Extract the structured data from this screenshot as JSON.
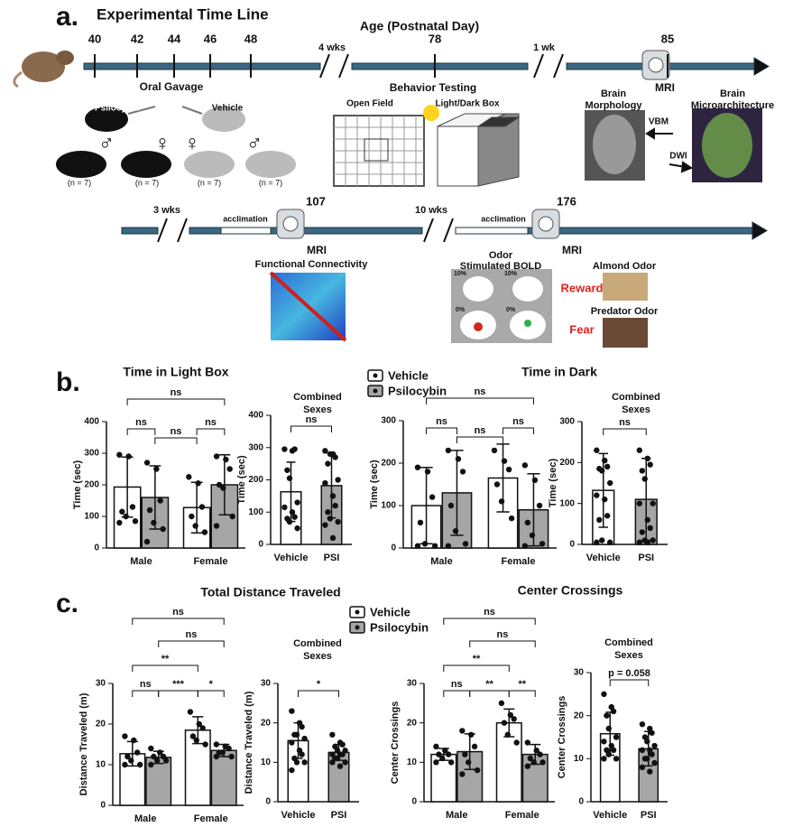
{
  "panels": [
    "a.",
    "b.",
    "c."
  ],
  "timeline": {
    "title": "Experimental Time Line",
    "axis_label": "Age (Postnatal Day)",
    "days": [
      "40",
      "42",
      "44",
      "46",
      "48",
      "78",
      "85",
      "107",
      "176"
    ],
    "gaps": [
      "4 wks",
      "1 wk",
      "3 wks",
      "10 wks"
    ],
    "gavage": {
      "label": "Oral Gavage",
      "drugs": [
        "Psilocybin",
        "Vehicle"
      ],
      "sexes": [
        "♂",
        "♀",
        "♀",
        "♂"
      ],
      "groups": [
        "(n = 7)",
        "(n = 7)",
        "(n = 7)",
        "(n = 7)"
      ]
    },
    "behavior": {
      "label": "Behavior Testing",
      "tests": [
        "Open Field",
        "Light/Dark Box"
      ]
    },
    "mri_labels": [
      "MRI",
      "MRI",
      "MRI"
    ],
    "morphology": {
      "label": [
        "Brain",
        "Morphology"
      ],
      "method": "VBM"
    },
    "microarchitecture": {
      "label": [
        "Brain",
        "Microarchitecture"
      ],
      "method": "DWI"
    },
    "acclimation": [
      "acclimation",
      "acclimation"
    ],
    "connectivity": "Functional Connectivity",
    "bold": {
      "label": [
        "Odor",
        "Stimulated BOLD"
      ],
      "scale": [
        "10%",
        "0%",
        "10%",
        "0%"
      ]
    },
    "odors": [
      {
        "name": "Almond Odor",
        "response": "Reward"
      },
      {
        "name": "Predator Odor",
        "response": "Fear"
      }
    ]
  },
  "chart_data": [
    {
      "type": "bar",
      "title": "Time in Light Box",
      "y_label": "Time (sec)",
      "categories": [
        "Male",
        "Female"
      ],
      "ylim": [
        0,
        400
      ],
      "yticks": [
        0,
        100,
        200,
        300,
        400
      ],
      "series": [
        {
          "name": "Vehicle",
          "color": "#ffffff",
          "values": [
            193,
            128
          ],
          "errors": [
            95,
            80
          ],
          "points": [
            [
              295,
              290,
              130,
              115,
              100,
              85,
              80
            ],
            [
              225,
              205,
              130,
              100,
              70,
              50
            ]
          ]
        },
        {
          "name": "Psilocybin",
          "color": "#a6a6a6",
          "values": [
            160,
            200
          ],
          "errors": [
            100,
            95
          ],
          "points": [
            [
              270,
              250,
              150,
              120,
              80,
              60,
              20
            ],
            [
              290,
              280,
              250,
              200,
              190,
              100,
              70
            ]
          ]
        }
      ],
      "annotations": [
        "ns",
        "ns",
        "ns",
        "ns"
      ]
    },
    {
      "type": "bar",
      "subtitle": [
        "Combined",
        "Sexes"
      ],
      "y_label": "Time (sec)",
      "categories": [
        "Vehicle",
        "PSI"
      ],
      "ylim": [
        0,
        400
      ],
      "yticks": [
        0,
        100,
        200,
        300,
        400
      ],
      "colors": [
        "#ffffff",
        "#a6a6a6"
      ],
      "values": [
        163,
        182
      ],
      "errors": [
        92,
        100
      ],
      "points": [
        [
          295,
          290,
          295,
          230,
          205,
          130,
          115,
          100,
          85,
          80,
          70,
          50
        ],
        [
          290,
          280,
          270,
          250,
          280,
          200,
          190,
          150,
          120,
          100,
          80,
          70,
          60,
          20
        ]
      ],
      "annotations": [
        "ns"
      ]
    },
    {
      "type": "bar",
      "title": "Time in Dark",
      "y_label": "Time (sec)",
      "categories": [
        "Male",
        "Female"
      ],
      "ylim": [
        0,
        300
      ],
      "yticks": [
        0,
        100,
        200,
        300
      ],
      "series": [
        {
          "color": "#ffffff",
          "values": [
            100,
            165
          ],
          "errors": [
            90,
            80
          ],
          "points": [
            [
              190,
              180,
              120,
              60,
              10,
              5,
              5
            ],
            [
              230,
              205,
              185,
              150,
              110,
              70
            ]
          ]
        },
        {
          "color": "#a6a6a6",
          "values": [
            130,
            90
          ],
          "errors": [
            100,
            85
          ],
          "points": [
            [
              230,
              210,
              180,
              100,
              40,
              10,
              5
            ],
            [
              195,
              160,
              100,
              60,
              30,
              10,
              5
            ]
          ]
        }
      ],
      "annotations": [
        "ns",
        "ns",
        "ns",
        "ns"
      ]
    },
    {
      "type": "bar",
      "subtitle": [
        "Combined",
        "Sexes"
      ],
      "y_label": "Time (sec)",
      "categories": [
        "Vehicle",
        "PSI"
      ],
      "ylim": [
        0,
        300
      ],
      "yticks": [
        0,
        100,
        200,
        300
      ],
      "colors": [
        "#ffffff",
        "#a6a6a6"
      ],
      "values": [
        132,
        110
      ],
      "errors": [
        90,
        100
      ],
      "points": [
        [
          230,
          205,
          190,
          185,
          180,
          150,
          120,
          110,
          70,
          60,
          10,
          5,
          5
        ],
        [
          230,
          210,
          195,
          180,
          160,
          100,
          100,
          60,
          40,
          30,
          10,
          10,
          5,
          5
        ]
      ],
      "annotations": [
        "ns"
      ]
    },
    {
      "type": "bar",
      "title": "Total Distance Traveled",
      "y_label": "Distance Traveled (m)",
      "categories": [
        "Male",
        "Female"
      ],
      "ylim": [
        0,
        30
      ],
      "yticks": [
        0,
        10,
        20,
        30
      ],
      "series": [
        {
          "name": "Vehicle",
          "color": "#ffffff",
          "values": [
            12.7,
            18.5
          ],
          "errors": [
            3,
            3.3
          ],
          "points": [
            [
              17,
              16,
              13,
              12,
              11,
              10,
              10
            ],
            [
              23,
              20,
              19,
              17,
              16,
              15
            ]
          ]
        },
        {
          "name": "Psilocybin",
          "color": "#a6a6a6",
          "values": [
            11.8,
            13.5
          ],
          "errors": [
            1.5,
            1.5
          ],
          "points": [
            [
              14,
              13,
              12,
              12,
              11,
              11,
              10
            ],
            [
              15,
              14.5,
              14,
              13,
              13,
              12,
              12
            ]
          ]
        }
      ],
      "annotations": [
        "ns",
        "ns",
        "**",
        "ns",
        "***",
        "*"
      ]
    },
    {
      "type": "bar",
      "subtitle": [
        "Combined",
        "Sexes"
      ],
      "y_label": "Distance Traveled (m)",
      "categories": [
        "Vehicle",
        "PSI"
      ],
      "ylim": [
        0,
        30
      ],
      "yticks": [
        0,
        10,
        20,
        30
      ],
      "colors": [
        "#ffffff",
        "#a6a6a6"
      ],
      "values": [
        15.5,
        12.5
      ],
      "errors": [
        4.5,
        2
      ],
      "points": [
        [
          23,
          20,
          19,
          17,
          17,
          16,
          15,
          13,
          12,
          11,
          10,
          10,
          8
        ],
        [
          17,
          15,
          14.5,
          14,
          13,
          13,
          12,
          12,
          12,
          11,
          11,
          10,
          10,
          9
        ]
      ],
      "annotations": [
        "*"
      ]
    },
    {
      "type": "bar",
      "title": "Center Crossings",
      "y_label": "Center Crossings",
      "categories": [
        "Male",
        "Female"
      ],
      "ylim": [
        0,
        30
      ],
      "yticks": [
        0,
        10,
        20,
        30
      ],
      "series": [
        {
          "color": "#ffffff",
          "values": [
            12,
            20
          ],
          "errors": [
            1.5,
            3.5
          ],
          "points": [
            [
              14,
              13,
              12,
              12,
              11,
              10,
              10
            ],
            [
              25,
              22,
              21,
              20,
              17,
              15
            ]
          ]
        },
        {
          "color": "#a6a6a6",
          "values": [
            12.7,
            12
          ],
          "errors": [
            4.5,
            2.5
          ],
          "points": [
            [
              18,
              17,
              14,
              12,
              10,
              8,
              7
            ],
            [
              15,
              13,
              12,
              11,
              10,
              10,
              9
            ]
          ]
        }
      ],
      "annotations": [
        "ns",
        "ns",
        "**",
        "ns",
        "**",
        "**"
      ]
    },
    {
      "type": "bar",
      "subtitle": [
        "Combined",
        "Sexes"
      ],
      "y_label": "Center Crossings",
      "categories": [
        "Vehicle",
        "PSI"
      ],
      "ylim": [
        0,
        30
      ],
      "yticks": [
        0,
        10,
        20,
        30
      ],
      "colors": [
        "#ffffff",
        "#a6a6a6"
      ],
      "values": [
        15.8,
        12.3
      ],
      "errors": [
        5,
        4
      ],
      "points": [
        [
          25,
          22,
          21,
          20,
          17,
          15,
          14,
          13,
          12,
          12,
          11,
          10,
          10
        ],
        [
          18,
          17,
          16,
          15,
          14,
          13,
          12,
          12,
          11,
          10,
          10,
          9,
          8,
          7
        ]
      ],
      "annotations": [
        "p = 0.058"
      ]
    }
  ]
}
